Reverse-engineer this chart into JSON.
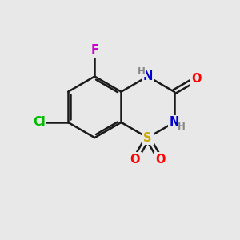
{
  "background_color": "#e8e8e8",
  "atom_colors": {
    "C": "#000000",
    "N": "#0000cc",
    "O": "#ff0000",
    "S": "#ccaa00",
    "F": "#cc00cc",
    "Cl": "#00bb00",
    "H": "#888888"
  },
  "bond_color": "#1a1a1a",
  "bond_width": 1.8
}
